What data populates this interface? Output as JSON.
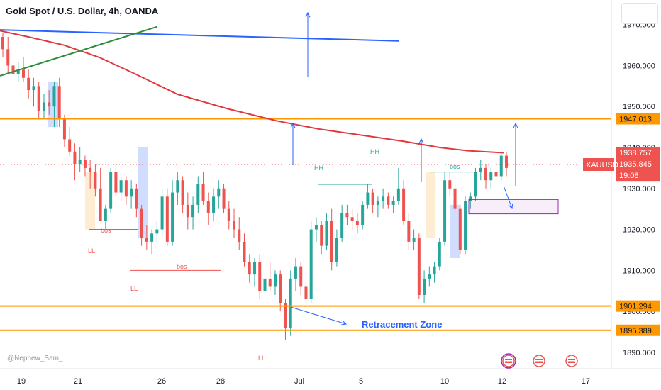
{
  "header": {
    "title": "Gold Spot / U.S. Dollar, 4h, OANDA",
    "watermark": "@Nephew_Sam_"
  },
  "chart_data": {
    "type": "candlestick",
    "symbol": "XAUUSD",
    "ylim": [
      1886,
      1976
    ],
    "y_ticks": [
      "1970.000",
      "1960.000",
      "1950.000",
      "1940.000",
      "1930.000",
      "1920.000",
      "1910.000",
      "1900.000",
      "1890.000"
    ],
    "x_ticks": [
      "19",
      "21",
      "26",
      "28",
      "Jul",
      "5",
      "10",
      "12",
      "17"
    ],
    "colors": {
      "up": "#26a69a",
      "down": "#ef5350",
      "ma": "#e03a3e",
      "orange": "#ff9800",
      "blue": "#2962ff",
      "green": "#2e8b3a",
      "purple": "#9c27b0"
    },
    "price_tags": {
      "last_price": "1938.757",
      "current": "1935.845",
      "symbol": "XAUUSD",
      "countdown": "19:08",
      "level_high": "1947.013",
      "level_mid": "1901.294",
      "level_low": "1895.389"
    },
    "horizontal_levels": [
      1947.013,
      1901.294,
      1895.389
    ],
    "annotations": {
      "retracement": "Retracement Zone",
      "bos": "bos",
      "ll": "LL",
      "hh": "HH"
    },
    "candles": [
      [
        1967,
        1968,
        1962,
        1964
      ],
      [
        1964,
        1967,
        1958,
        1960
      ],
      [
        1960,
        1963,
        1955,
        1958
      ],
      [
        1958,
        1961,
        1956,
        1959
      ],
      [
        1959,
        1962,
        1956,
        1957
      ],
      [
        1957,
        1959,
        1952,
        1954
      ],
      [
        1954,
        1957,
        1950,
        1955
      ],
      [
        1955,
        1956,
        1947,
        1949
      ],
      [
        1949,
        1953,
        1947,
        1951
      ],
      [
        1951,
        1954,
        1948,
        1950
      ],
      [
        1950,
        1956,
        1945,
        1955
      ],
      [
        1955,
        1957,
        1945,
        1947
      ],
      [
        1947,
        1948,
        1940,
        1942
      ],
      [
        1942,
        1945,
        1938,
        1939
      ],
      [
        1939,
        1941,
        1932,
        1936
      ],
      [
        1936,
        1940,
        1934,
        1937
      ],
      [
        1937,
        1938,
        1933,
        1935
      ],
      [
        1935,
        1937,
        1930,
        1934
      ],
      [
        1934,
        1936,
        1928,
        1930
      ],
      [
        1930,
        1935,
        1922,
        1922
      ],
      [
        1922,
        1926,
        1920,
        1925
      ],
      [
        1925,
        1935,
        1924,
        1934
      ],
      [
        1934,
        1936,
        1928,
        1929
      ],
      [
        1929,
        1933,
        1927,
        1932
      ],
      [
        1932,
        1933,
        1926,
        1928
      ],
      [
        1928,
        1932,
        1925,
        1930
      ],
      [
        1930,
        1931,
        1923,
        1925
      ],
      [
        1925,
        1926,
        1916,
        1918
      ],
      [
        1918,
        1921,
        1915,
        1917
      ],
      [
        1917,
        1920,
        1914,
        1919
      ],
      [
        1919,
        1922,
        1917,
        1920
      ],
      [
        1920,
        1930,
        1918,
        1928
      ],
      [
        1928,
        1930,
        1916,
        1917
      ],
      [
        1917,
        1932,
        1916,
        1929
      ],
      [
        1929,
        1934,
        1926,
        1932
      ],
      [
        1932,
        1933,
        1924,
        1926
      ],
      [
        1926,
        1929,
        1920,
        1923
      ],
      [
        1923,
        1928,
        1920,
        1926
      ],
      [
        1926,
        1933,
        1924,
        1931
      ],
      [
        1931,
        1934,
        1926,
        1927
      ],
      [
        1927,
        1929,
        1921,
        1924
      ],
      [
        1924,
        1930,
        1922,
        1928
      ],
      [
        1928,
        1932,
        1925,
        1930
      ],
      [
        1930,
        1931,
        1924,
        1925
      ],
      [
        1925,
        1927,
        1920,
        1922
      ],
      [
        1922,
        1925,
        1918,
        1920
      ],
      [
        1920,
        1923,
        1915,
        1917
      ],
      [
        1917,
        1919,
        1911,
        1912
      ],
      [
        1912,
        1914,
        1907,
        1909
      ],
      [
        1909,
        1913,
        1906,
        1912
      ],
      [
        1912,
        1914,
        1903,
        1905
      ],
      [
        1905,
        1910,
        1903,
        1908
      ],
      [
        1908,
        1912,
        1905,
        1906
      ],
      [
        1906,
        1910,
        1904,
        1909
      ],
      [
        1909,
        1910,
        1900,
        1902
      ],
      [
        1902,
        1903,
        1893,
        1896
      ],
      [
        1896,
        1910,
        1894,
        1908
      ],
      [
        1908,
        1913,
        1905,
        1911
      ],
      [
        1911,
        1912,
        1904,
        1906
      ],
      [
        1906,
        1909,
        1901,
        1903
      ],
      [
        1903,
        1922,
        1902,
        1920
      ],
      [
        1920,
        1923,
        1917,
        1921
      ],
      [
        1921,
        1922,
        1914,
        1916
      ],
      [
        1916,
        1924,
        1915,
        1922
      ],
      [
        1922,
        1925,
        1910,
        1912
      ],
      [
        1912,
        1920,
        1911,
        1918
      ],
      [
        1918,
        1926,
        1917,
        1924
      ],
      [
        1924,
        1926,
        1921,
        1923
      ],
      [
        1923,
        1925,
        1920,
        1922
      ],
      [
        1922,
        1924,
        1919,
        1921
      ],
      [
        1921,
        1927,
        1920,
        1926
      ],
      [
        1926,
        1931,
        1925,
        1929
      ],
      [
        1929,
        1930,
        1924,
        1926
      ],
      [
        1926,
        1928,
        1923,
        1927
      ],
      [
        1927,
        1930,
        1925,
        1928
      ],
      [
        1928,
        1929,
        1925,
        1926
      ],
      [
        1926,
        1928,
        1924,
        1927
      ],
      [
        1927,
        1935,
        1926,
        1930
      ],
      [
        1930,
        1932,
        1921,
        1922
      ],
      [
        1922,
        1924,
        1915,
        1917
      ],
      [
        1917,
        1920,
        1915,
        1918
      ],
      [
        1918,
        1919,
        1903,
        1904
      ],
      [
        1904,
        1910,
        1902,
        1908
      ],
      [
        1908,
        1911,
        1906,
        1909
      ],
      [
        1909,
        1912,
        1907,
        1911
      ],
      [
        1911,
        1918,
        1910,
        1917
      ],
      [
        1917,
        1934,
        1916,
        1932
      ],
      [
        1932,
        1934,
        1928,
        1930
      ],
      [
        1930,
        1931,
        1924,
        1925
      ],
      [
        1925,
        1926,
        1914,
        1915
      ],
      [
        1915,
        1928,
        1914,
        1927
      ],
      [
        1927,
        1929,
        1925,
        1928
      ],
      [
        1928,
        1935,
        1927,
        1934
      ],
      [
        1934,
        1937,
        1932,
        1935
      ],
      [
        1935,
        1936,
        1930,
        1932
      ],
      [
        1932,
        1935,
        1930,
        1934
      ],
      [
        1934,
        1936,
        1931,
        1933
      ],
      [
        1933,
        1939,
        1932,
        1938
      ],
      [
        1938,
        1939,
        1933,
        1935
      ]
    ]
  }
}
